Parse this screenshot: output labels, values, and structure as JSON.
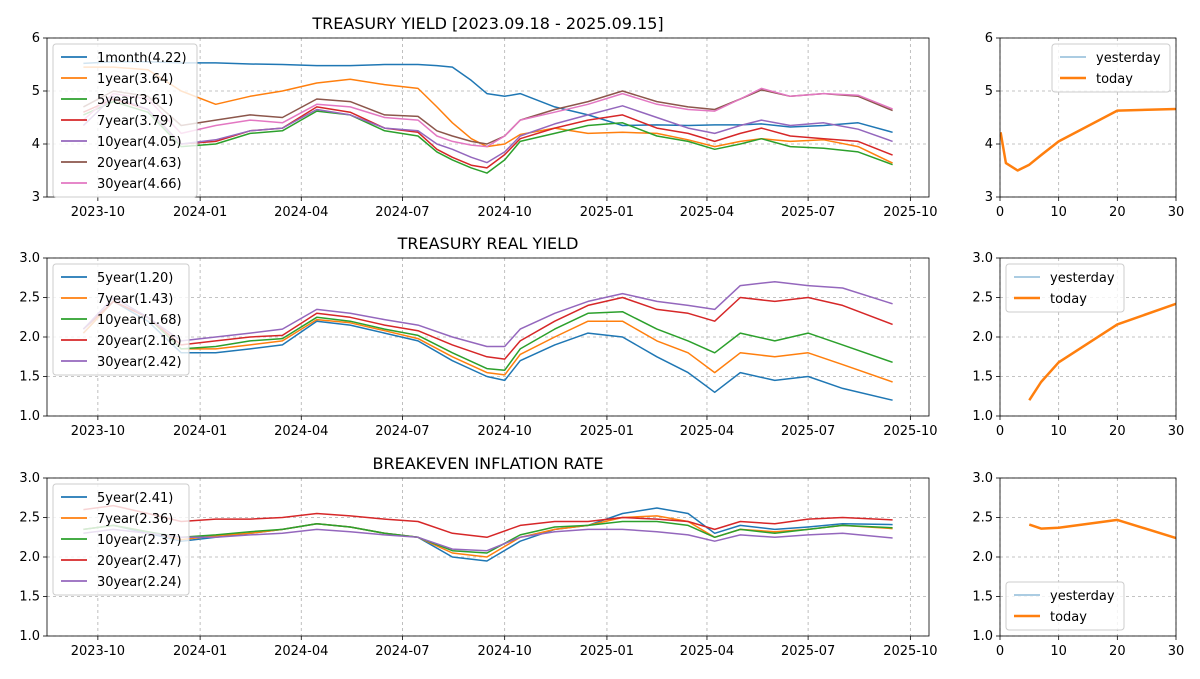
{
  "chart_data": [
    {
      "type": "line",
      "title": "TREASURY YIELD [2023.09.18 - 2025.09.15]",
      "xlabel": "",
      "ylabel": "",
      "ylim": [
        3,
        6
      ],
      "yticks": [
        3,
        4,
        5,
        6
      ],
      "xticks": [
        "2023-10",
        "2024-01",
        "2024-04",
        "2024-07",
        "2024-10",
        "2025-01",
        "2025-04",
        "2025-07",
        "2025-10"
      ],
      "grid": true,
      "legend": "top-left",
      "x": [
        "2023-09-18",
        "2023-10-15",
        "2023-11-15",
        "2023-12-15",
        "2024-01-15",
        "2024-02-15",
        "2024-03-15",
        "2024-04-15",
        "2024-05-15",
        "2024-06-15",
        "2024-07-15",
        "2024-08-01",
        "2024-08-15",
        "2024-09-01",
        "2024-09-15",
        "2024-10-01",
        "2024-10-15",
        "2024-11-15",
        "2024-12-15",
        "2025-01-15",
        "2025-02-15",
        "2025-03-15",
        "2025-04-08",
        "2025-05-01",
        "2025-05-20",
        "2025-06-15",
        "2025-07-15",
        "2025-08-15",
        "2025-09-15"
      ],
      "series": [
        {
          "name": "1month(4.22)",
          "color": "#1f77b4",
          "values": [
            5.52,
            5.55,
            5.55,
            5.53,
            5.53,
            5.51,
            5.5,
            5.48,
            5.48,
            5.5,
            5.5,
            5.48,
            5.45,
            5.2,
            4.95,
            4.9,
            4.95,
            4.7,
            4.55,
            4.35,
            4.36,
            4.35,
            4.36,
            4.36,
            4.38,
            4.32,
            4.35,
            4.4,
            4.22
          ]
        },
        {
          "name": "1year(3.64)",
          "color": "#ff7f0e",
          "values": [
            5.45,
            5.45,
            5.4,
            5.0,
            4.75,
            4.9,
            5.0,
            5.15,
            5.22,
            5.12,
            5.05,
            4.7,
            4.4,
            4.1,
            3.95,
            4.0,
            4.18,
            4.3,
            4.2,
            4.22,
            4.2,
            4.08,
            3.95,
            4.05,
            4.1,
            4.05,
            4.08,
            3.95,
            3.64
          ]
        },
        {
          "name": "5year(3.61)",
          "color": "#2ca02c",
          "values": [
            4.55,
            4.8,
            4.6,
            3.95,
            4.0,
            4.2,
            4.25,
            4.62,
            4.55,
            4.25,
            4.15,
            3.85,
            3.7,
            3.55,
            3.45,
            3.7,
            4.05,
            4.2,
            4.35,
            4.4,
            4.15,
            4.05,
            3.9,
            4.0,
            4.1,
            3.95,
            3.92,
            3.85,
            3.61
          ]
        },
        {
          "name": "7year(3.79)",
          "color": "#d62728",
          "values": [
            4.6,
            4.85,
            4.65,
            4.0,
            4.05,
            4.25,
            4.3,
            4.7,
            4.6,
            4.3,
            4.22,
            3.9,
            3.75,
            3.6,
            3.55,
            3.8,
            4.1,
            4.3,
            4.45,
            4.55,
            4.3,
            4.2,
            4.05,
            4.2,
            4.3,
            4.15,
            4.1,
            4.05,
            3.79
          ]
        },
        {
          "name": "10year(4.05)",
          "color": "#9467bd",
          "values": [
            4.35,
            4.9,
            4.65,
            4.0,
            4.08,
            4.25,
            4.3,
            4.65,
            4.55,
            4.3,
            4.25,
            4.0,
            3.9,
            3.75,
            3.65,
            3.85,
            4.15,
            4.38,
            4.55,
            4.72,
            4.5,
            4.3,
            4.2,
            4.35,
            4.45,
            4.35,
            4.4,
            4.28,
            4.05
          ]
        },
        {
          "name": "20year(4.63)",
          "color": "#8c564b",
          "values": [
            4.7,
            5.0,
            4.9,
            4.35,
            4.45,
            4.55,
            4.5,
            4.85,
            4.8,
            4.55,
            4.52,
            4.25,
            4.15,
            4.05,
            4.0,
            4.15,
            4.45,
            4.65,
            4.8,
            5.0,
            4.8,
            4.7,
            4.65,
            4.85,
            5.02,
            4.9,
            4.95,
            4.9,
            4.63
          ]
        },
        {
          "name": "30year(4.66)",
          "color": "#e377c2",
          "values": [
            4.45,
            4.95,
            4.85,
            4.2,
            4.35,
            4.45,
            4.4,
            4.75,
            4.7,
            4.5,
            4.45,
            4.15,
            4.05,
            3.98,
            3.95,
            4.15,
            4.45,
            4.6,
            4.75,
            4.95,
            4.75,
            4.65,
            4.62,
            4.85,
            5.05,
            4.9,
            4.95,
            4.92,
            4.66
          ]
        }
      ]
    },
    {
      "type": "line",
      "title": "",
      "xlabel": "",
      "ylabel": "",
      "xlim": [
        0,
        30
      ],
      "ylim": [
        3,
        6
      ],
      "xticks": [
        0,
        10,
        20,
        30
      ],
      "yticks": [
        3,
        4,
        5,
        6
      ],
      "grid": true,
      "legend": "top-right",
      "series": [
        {
          "name": "yesterday",
          "color": "#1f77b4",
          "x": [
            0.1,
            1,
            3,
            5,
            7,
            10,
            20,
            30
          ],
          "values": [
            4.22,
            3.64,
            3.5,
            3.61,
            3.79,
            4.05,
            4.63,
            4.66
          ]
        },
        {
          "name": "today",
          "color": "#ff7f0e",
          "x": [
            0.1,
            1,
            3,
            5,
            7,
            10,
            20,
            30
          ],
          "values": [
            4.22,
            3.64,
            3.5,
            3.61,
            3.79,
            4.05,
            4.63,
            4.66
          ]
        }
      ]
    },
    {
      "type": "line",
      "title": "TREASURY REAL YIELD",
      "xlabel": "",
      "ylabel": "",
      "ylim": [
        1.0,
        3.0
      ],
      "yticks": [
        1.0,
        1.5,
        2.0,
        2.5,
        3.0
      ],
      "xticks": [
        "2023-10",
        "2024-01",
        "2024-04",
        "2024-07",
        "2024-10",
        "2025-01",
        "2025-04",
        "2025-07",
        "2025-10"
      ],
      "grid": true,
      "legend": "top-left",
      "x": [
        "2023-09-18",
        "2023-10-15",
        "2023-11-15",
        "2023-12-15",
        "2024-01-15",
        "2024-02-15",
        "2024-03-15",
        "2024-04-15",
        "2024-05-15",
        "2024-06-15",
        "2024-07-15",
        "2024-08-15",
        "2024-09-15",
        "2024-10-01",
        "2024-10-15",
        "2024-11-15",
        "2024-12-15",
        "2025-01-15",
        "2025-02-15",
        "2025-03-15",
        "2025-04-08",
        "2025-05-01",
        "2025-06-01",
        "2025-07-01",
        "2025-08-01",
        "2025-09-15"
      ],
      "series": [
        {
          "name": "5year(1.20)",
          "color": "#1f77b4",
          "values": [
            2.05,
            2.45,
            2.2,
            1.8,
            1.8,
            1.85,
            1.9,
            2.2,
            2.15,
            2.05,
            1.95,
            1.7,
            1.5,
            1.45,
            1.7,
            1.9,
            2.05,
            2.0,
            1.75,
            1.55,
            1.3,
            1.55,
            1.45,
            1.5,
            1.35,
            1.2
          ]
        },
        {
          "name": "7year(1.43)",
          "color": "#ff7f0e",
          "values": [
            2.05,
            2.45,
            2.25,
            1.85,
            1.85,
            1.9,
            1.95,
            2.22,
            2.18,
            2.08,
            1.98,
            1.75,
            1.55,
            1.52,
            1.78,
            2.0,
            2.2,
            2.2,
            1.95,
            1.8,
            1.55,
            1.8,
            1.75,
            1.8,
            1.65,
            1.43
          ]
        },
        {
          "name": "10year(1.68)",
          "color": "#2ca02c",
          "values": [
            2.1,
            2.45,
            2.25,
            1.85,
            1.88,
            1.95,
            1.98,
            2.25,
            2.2,
            2.1,
            2.02,
            1.8,
            1.6,
            1.58,
            1.85,
            2.1,
            2.3,
            2.32,
            2.1,
            1.95,
            1.8,
            2.05,
            1.95,
            2.05,
            1.9,
            1.68
          ]
        },
        {
          "name": "20year(2.16)",
          "color": "#d62728",
          "values": [
            2.1,
            2.45,
            2.25,
            1.9,
            1.95,
            2.0,
            2.02,
            2.3,
            2.25,
            2.15,
            2.08,
            1.9,
            1.75,
            1.72,
            1.95,
            2.2,
            2.4,
            2.5,
            2.35,
            2.3,
            2.2,
            2.5,
            2.45,
            2.5,
            2.4,
            2.16
          ]
        },
        {
          "name": "30year(2.42)",
          "color": "#9467bd",
          "values": [
            2.1,
            2.5,
            2.25,
            1.95,
            2.0,
            2.05,
            2.1,
            2.35,
            2.3,
            2.22,
            2.15,
            2.0,
            1.88,
            1.88,
            2.1,
            2.3,
            2.45,
            2.55,
            2.45,
            2.4,
            2.35,
            2.65,
            2.7,
            2.65,
            2.62,
            2.42
          ]
        }
      ]
    },
    {
      "type": "line",
      "title": "",
      "xlabel": "",
      "ylabel": "",
      "xlim": [
        0,
        30
      ],
      "ylim": [
        1.0,
        3.0
      ],
      "xticks": [
        0,
        10,
        20,
        30
      ],
      "yticks": [
        1.0,
        1.5,
        2.0,
        2.5,
        3.0
      ],
      "grid": true,
      "legend": "top-left",
      "series": [
        {
          "name": "yesterday",
          "color": "#1f77b4",
          "x": [
            5,
            7,
            10,
            20,
            30
          ],
          "values": [
            1.2,
            1.43,
            1.68,
            2.16,
            2.42
          ]
        },
        {
          "name": "today",
          "color": "#ff7f0e",
          "x": [
            5,
            7,
            10,
            20,
            30
          ],
          "values": [
            1.2,
            1.43,
            1.68,
            2.16,
            2.42
          ]
        }
      ]
    },
    {
      "type": "line",
      "title": "BREAKEVEN INFLATION RATE",
      "xlabel": "",
      "ylabel": "",
      "ylim": [
        1.0,
        3.0
      ],
      "yticks": [
        1.0,
        1.5,
        2.0,
        2.5,
        3.0
      ],
      "xticks": [
        "2023-10",
        "2024-01",
        "2024-04",
        "2024-07",
        "2024-10",
        "2025-01",
        "2025-04",
        "2025-07",
        "2025-10"
      ],
      "grid": true,
      "legend": "top-left",
      "x": [
        "2023-09-18",
        "2023-10-15",
        "2023-11-15",
        "2023-12-15",
        "2024-01-15",
        "2024-02-15",
        "2024-03-15",
        "2024-04-15",
        "2024-05-15",
        "2024-06-15",
        "2024-07-15",
        "2024-08-15",
        "2024-09-15",
        "2024-10-15",
        "2024-11-15",
        "2024-12-15",
        "2025-01-15",
        "2025-02-15",
        "2025-03-15",
        "2025-04-08",
        "2025-05-01",
        "2025-06-01",
        "2025-07-01",
        "2025-08-01",
        "2025-09-15"
      ],
      "series": [
        {
          "name": "5year(2.41)",
          "color": "#1f77b4",
          "values": [
            2.35,
            2.4,
            2.3,
            2.2,
            2.25,
            2.3,
            2.35,
            2.42,
            2.38,
            2.3,
            2.25,
            2.0,
            1.95,
            2.2,
            2.35,
            2.4,
            2.55,
            2.62,
            2.55,
            2.3,
            2.4,
            2.35,
            2.38,
            2.42,
            2.41
          ]
        },
        {
          "name": "7year(2.36)",
          "color": "#ff7f0e",
          "values": [
            2.35,
            2.4,
            2.32,
            2.22,
            2.27,
            2.3,
            2.35,
            2.42,
            2.38,
            2.3,
            2.25,
            2.05,
            2.0,
            2.25,
            2.35,
            2.4,
            2.5,
            2.52,
            2.45,
            2.25,
            2.35,
            2.32,
            2.35,
            2.4,
            2.36
          ]
        },
        {
          "name": "10year(2.37)",
          "color": "#2ca02c",
          "values": [
            2.35,
            2.4,
            2.32,
            2.25,
            2.28,
            2.32,
            2.35,
            2.42,
            2.38,
            2.3,
            2.25,
            2.08,
            2.05,
            2.28,
            2.38,
            2.4,
            2.45,
            2.45,
            2.4,
            2.25,
            2.35,
            2.3,
            2.35,
            2.4,
            2.37
          ]
        },
        {
          "name": "20year(2.47)",
          "color": "#d62728",
          "values": [
            2.6,
            2.65,
            2.55,
            2.45,
            2.48,
            2.48,
            2.5,
            2.55,
            2.52,
            2.48,
            2.45,
            2.3,
            2.25,
            2.4,
            2.45,
            2.45,
            2.5,
            2.48,
            2.45,
            2.35,
            2.45,
            2.42,
            2.48,
            2.5,
            2.47
          ]
        },
        {
          "name": "30year(2.24)",
          "color": "#9467bd",
          "values": [
            2.3,
            2.35,
            2.3,
            2.25,
            2.25,
            2.28,
            2.3,
            2.35,
            2.32,
            2.28,
            2.25,
            2.1,
            2.08,
            2.25,
            2.32,
            2.35,
            2.35,
            2.32,
            2.28,
            2.2,
            2.28,
            2.25,
            2.28,
            2.3,
            2.24
          ]
        }
      ]
    },
    {
      "type": "line",
      "title": "",
      "xlabel": "",
      "ylabel": "",
      "xlim": [
        0,
        30
      ],
      "ylim": [
        1.0,
        3.0
      ],
      "xticks": [
        0,
        10,
        20,
        30
      ],
      "yticks": [
        1.0,
        1.5,
        2.0,
        2.5,
        3.0
      ],
      "grid": true,
      "legend": "bottom-left",
      "series": [
        {
          "name": "yesterday",
          "color": "#1f77b4",
          "x": [
            5,
            7,
            10,
            20,
            30
          ],
          "values": [
            2.41,
            2.36,
            2.37,
            2.47,
            2.24
          ]
        },
        {
          "name": "today",
          "color": "#ff7f0e",
          "x": [
            5,
            7,
            10,
            20,
            30
          ],
          "values": [
            2.41,
            2.36,
            2.37,
            2.47,
            2.24
          ]
        }
      ]
    }
  ]
}
